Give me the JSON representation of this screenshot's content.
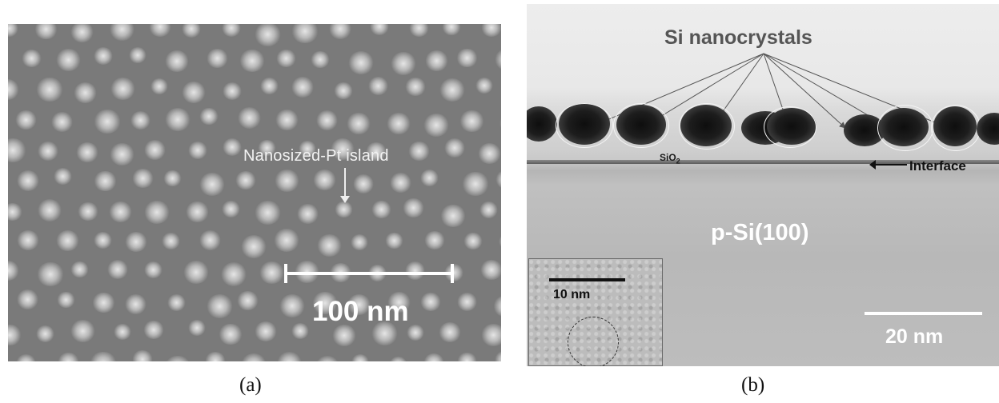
{
  "panel_a": {
    "annotation": "Nanosized-Pt island",
    "scale_label": "100 nm",
    "caption": "(a)"
  },
  "panel_b": {
    "title": "Si nanocrystals",
    "oxide_label": "SiO",
    "oxide_subscript": "2",
    "interface_label": "Interface",
    "substrate_label": "p-Si(100)",
    "inset_scale_label": "10 nm",
    "scale_label": "20 nm",
    "caption": "(b)"
  },
  "colors": {
    "sem_background": "#7a7a7a",
    "tem_background": "#e8e8e8",
    "nanocrystal": "#111111"
  }
}
